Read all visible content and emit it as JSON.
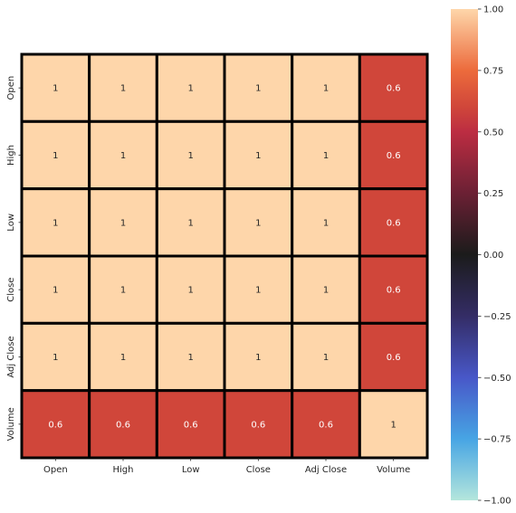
{
  "chart_data": {
    "type": "heatmap",
    "title": "",
    "xlabel": "",
    "ylabel": "",
    "x_labels": [
      "Open",
      "High",
      "Low",
      "Close",
      "Adj Close",
      "Volume"
    ],
    "y_labels": [
      "Open",
      "High",
      "Low",
      "Close",
      "Adj Close",
      "Volume"
    ],
    "values": [
      [
        1,
        1,
        1,
        1,
        1,
        0.6
      ],
      [
        1,
        1,
        1,
        1,
        1,
        0.6
      ],
      [
        1,
        1,
        1,
        1,
        1,
        0.6
      ],
      [
        1,
        1,
        1,
        1,
        1,
        0.6
      ],
      [
        1,
        1,
        1,
        1,
        1,
        0.6
      ],
      [
        0.6,
        0.6,
        0.6,
        0.6,
        0.6,
        1
      ]
    ],
    "annotations": [
      [
        "1",
        "1",
        "1",
        "1",
        "1",
        "0.6"
      ],
      [
        "1",
        "1",
        "1",
        "1",
        "1",
        "0.6"
      ],
      [
        "1",
        "1",
        "1",
        "1",
        "1",
        "0.6"
      ],
      [
        "1",
        "1",
        "1",
        "1",
        "1",
        "0.6"
      ],
      [
        "1",
        "1",
        "1",
        "1",
        "1",
        "0.6"
      ],
      [
        "0.6",
        "0.6",
        "0.6",
        "0.6",
        "0.6",
        "1"
      ]
    ],
    "vmin": -1,
    "vmax": 1,
    "colorbar": {
      "ticks": [
        1.0,
        0.75,
        0.5,
        0.25,
        0.0,
        -0.25,
        -0.5,
        -0.75,
        -1.0
      ],
      "tick_labels": [
        "1.00",
        "0.75",
        "0.50",
        "0.25",
        "0.00",
        "−0.25",
        "−0.50",
        "−0.75",
        "−1.00"
      ]
    },
    "colormap": "icefire",
    "cell_border_color": "#000000",
    "grid": false,
    "legend": "colorbar-right"
  }
}
